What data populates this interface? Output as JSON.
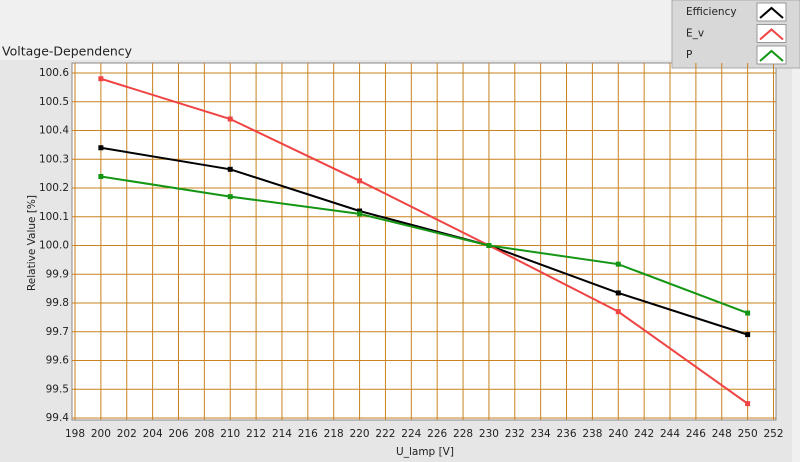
{
  "chart_data": {
    "type": "line",
    "title": "Voltage-Dependency",
    "x_label": "U_lamp [V]",
    "y_label": "Relative Value [%]",
    "x": [
      200,
      210,
      220,
      230,
      240,
      250
    ],
    "series": [
      {
        "name": "Efficiency",
        "color": "#000000",
        "values": [
          100.34,
          100.265,
          100.12,
          100.0,
          99.835,
          99.69
        ]
      },
      {
        "name": "E_v",
        "color": "#f04444",
        "values": [
          100.58,
          100.44,
          100.225,
          100.0,
          99.77,
          99.45
        ]
      },
      {
        "name": "P",
        "color": "#149614",
        "values": [
          100.24,
          100.17,
          100.11,
          100.0,
          99.935,
          99.765
        ]
      }
    ],
    "xlim": [
      198,
      252
    ],
    "xticks": [
      198,
      200,
      202,
      204,
      206,
      208,
      210,
      212,
      214,
      216,
      218,
      220,
      222,
      224,
      226,
      228,
      230,
      232,
      234,
      236,
      238,
      240,
      242,
      244,
      246,
      248,
      250,
      252
    ],
    "ylim": [
      99.4,
      100.6
    ],
    "yticks": [
      99.4,
      99.5,
      99.6,
      99.7,
      99.8,
      99.9,
      {
        "value": 100,
        "label": "100.0"
      },
      100.1,
      100.2,
      100.3,
      100.4,
      100.5,
      100.6
    ],
    "grid": true,
    "grid_color": "#c8821e",
    "legend_position": "top-right"
  }
}
